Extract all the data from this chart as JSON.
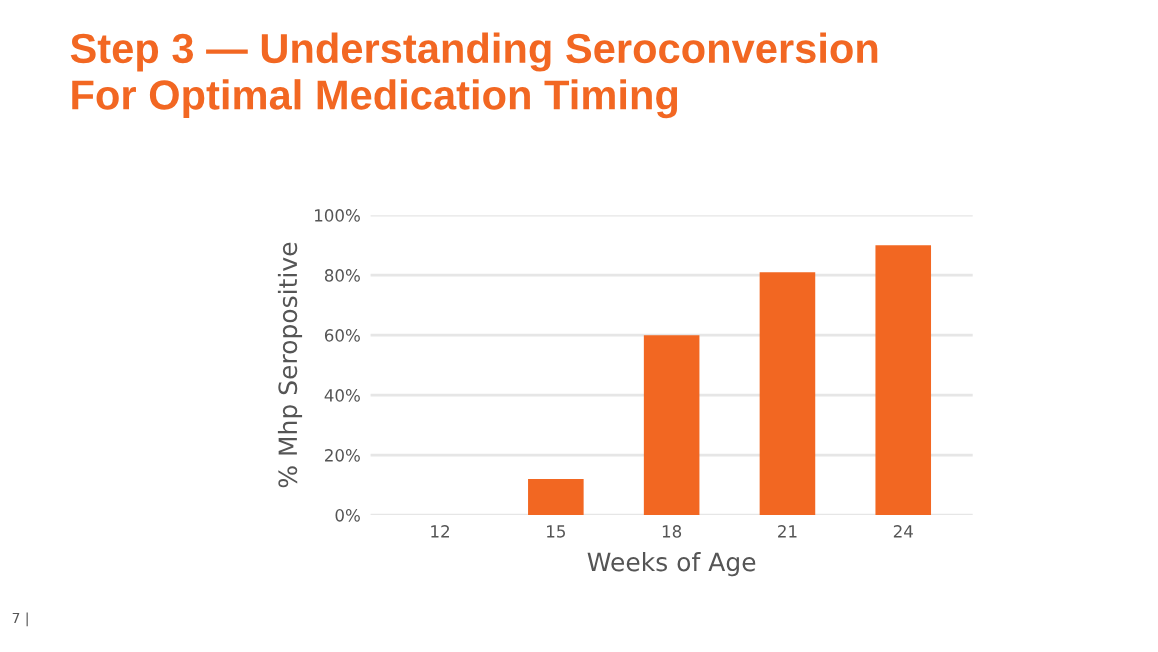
{
  "chart_data": {
    "type": "bar",
    "title": "Step 3 — Understanding Seroconversion\nFor Optimal Medication Timing",
    "xlabel": "Weeks of Age",
    "ylabel": "% Mhp Seropositive",
    "categories": [
      "12",
      "15",
      "18",
      "21",
      "24"
    ],
    "values": [
      0,
      12,
      60,
      81,
      90
    ],
    "color": "#f26722",
    "ylim": [
      0,
      100
    ],
    "yticks": [
      {
        "value": 0,
        "label": "0%"
      },
      {
        "value": 20,
        "label": "20%"
      },
      {
        "value": 40,
        "label": "40%"
      },
      {
        "value": 60,
        "label": "60%"
      },
      {
        "value": 80,
        "label": "80%"
      },
      {
        "value": 100,
        "label": "100%"
      }
    ],
    "grid": "y",
    "legend": false,
    "annotations": [
      "7 |"
    ]
  }
}
